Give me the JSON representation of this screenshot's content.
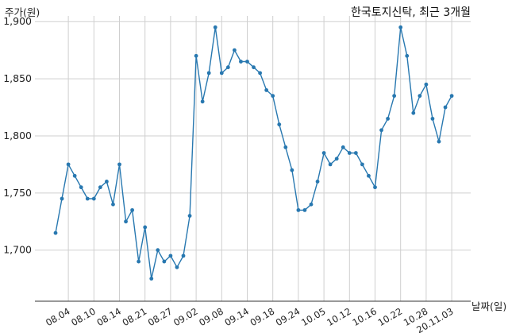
{
  "chart_data": {
    "type": "line",
    "title": "한국토지신탁, 최근 3개월",
    "xlabel": "날짜(일)",
    "ylabel": "주가(원)",
    "ylim": [
      1665,
      1905
    ],
    "yticks": [
      1700,
      1750,
      1800,
      1850,
      1900
    ],
    "ytick_labels": [
      "1,700",
      "1,750",
      "1,800",
      "1,850",
      "1,900"
    ],
    "xtick_labels": [
      "08.04",
      "08.10",
      "08.14",
      "08.21",
      "08.27",
      "09.02",
      "09.08",
      "09.14",
      "09.18",
      "09.24",
      "10.05",
      "10.12",
      "10.16",
      "10.22",
      "10.28",
      "20.11.03"
    ],
    "xtick_indices": [
      2,
      6,
      10,
      14,
      18,
      22,
      26,
      30,
      34,
      38,
      42,
      46,
      50,
      54,
      58,
      62
    ],
    "grid": true,
    "line_color": "#2878b0",
    "values": [
      1715,
      1745,
      1775,
      1765,
      1755,
      1745,
      1745,
      1755,
      1760,
      1740,
      1775,
      1725,
      1735,
      1690,
      1720,
      1675,
      1700,
      1690,
      1695,
      1685,
      1695,
      1730,
      1870,
      1830,
      1855,
      1895,
      1855,
      1860,
      1875,
      1865,
      1865,
      1860,
      1855,
      1840,
      1835,
      1810,
      1790,
      1770,
      1735,
      1735,
      1740,
      1760,
      1785,
      1775,
      1780,
      1790,
      1785,
      1785,
      1775,
      1765,
      1755,
      1805,
      1815,
      1835,
      1895,
      1870,
      1820,
      1835,
      1845,
      1815,
      1795,
      1825,
      1835
    ]
  }
}
